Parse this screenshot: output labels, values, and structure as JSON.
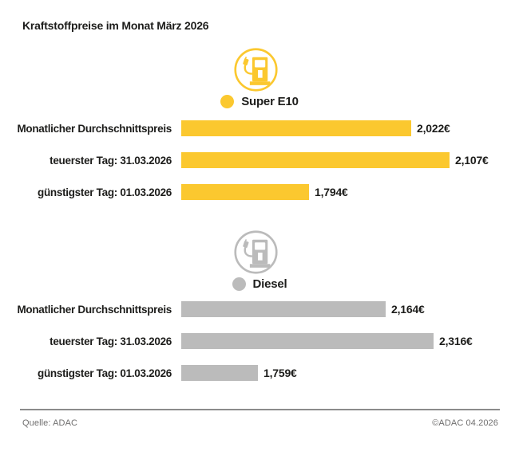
{
  "title": "Kraftstoffpreise im Monat März 2026",
  "colors": {
    "super_e10": "#FBC82F",
    "diesel": "#BBBBBB",
    "text": "#1D1D1B",
    "footer_text": "#706F6F"
  },
  "chart_data": [
    {
      "type": "bar",
      "orientation": "horizontal",
      "series_name": "Super E10",
      "icon": "fuel-pump-icon",
      "categories": [
        "Monatlicher Durchschnittspreis",
        "teuerster Tag: 31.03.2026",
        "günstigster Tag: 01.03.2026"
      ],
      "values": [
        2.022,
        2.107,
        1.794
      ],
      "value_labels": [
        "2,022€",
        "2,107€",
        "1,794€"
      ],
      "color": "#FBC82F",
      "xlim": [
        1.51,
        2.107
      ],
      "grid": false,
      "legend_position": "top"
    },
    {
      "type": "bar",
      "orientation": "horizontal",
      "series_name": "Diesel",
      "icon": "fuel-pump-icon",
      "categories": [
        "Monatlicher Durchschnittspreis",
        "teuerster Tag: 31.03.2026",
        "günstigster Tag: 01.03.2026"
      ],
      "values": [
        2.164,
        2.316,
        1.759
      ],
      "value_labels": [
        "2,164€",
        "2,316€",
        "1,759€"
      ],
      "color": "#BBBBBB",
      "xlim": [
        1.516,
        2.316
      ],
      "grid": false,
      "legend_position": "top"
    }
  ],
  "footer": {
    "source": "Quelle: ADAC",
    "copyright": "©ADAC 04.2026"
  }
}
